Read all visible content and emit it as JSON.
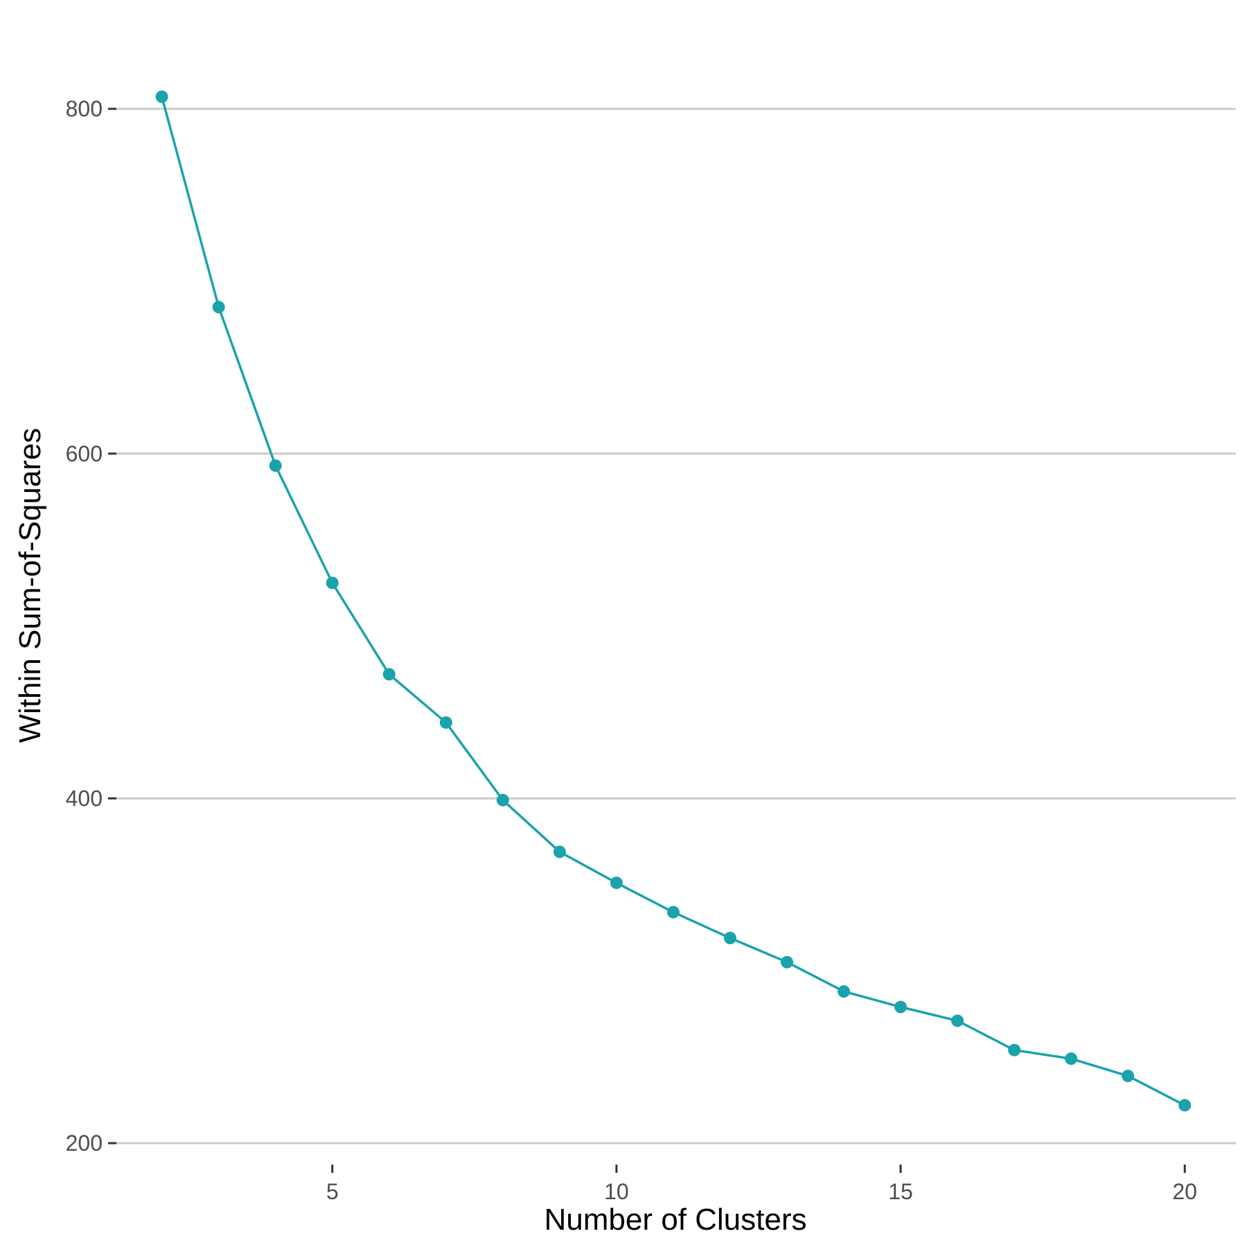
{
  "chart_data": {
    "type": "line",
    "title": "",
    "xlabel": "Number of Clusters",
    "ylabel": "Within Sum-of-Squares",
    "x": [
      2,
      3,
      4,
      5,
      6,
      7,
      8,
      9,
      10,
      11,
      12,
      13,
      14,
      15,
      16,
      17,
      18,
      19,
      20
    ],
    "series": [
      {
        "values": [
          807,
          685,
          593,
          525,
          472,
          444,
          399,
          369,
          351,
          334,
          319,
          305,
          288,
          279,
          271,
          254,
          249,
          239,
          222
        ]
      }
    ],
    "xlim": [
      1.2,
      20.9
    ],
    "ylim": [
      190,
      835
    ],
    "x_ticks": [
      5,
      10,
      15,
      20
    ],
    "y_ticks": [
      200,
      400,
      600,
      800
    ],
    "grid": "horizontal major only",
    "legend": "none",
    "colors": {
      "line": "#1ba3ac",
      "point": "#1ba3ac",
      "grid": "#cccccc",
      "tick": "#333333"
    }
  }
}
